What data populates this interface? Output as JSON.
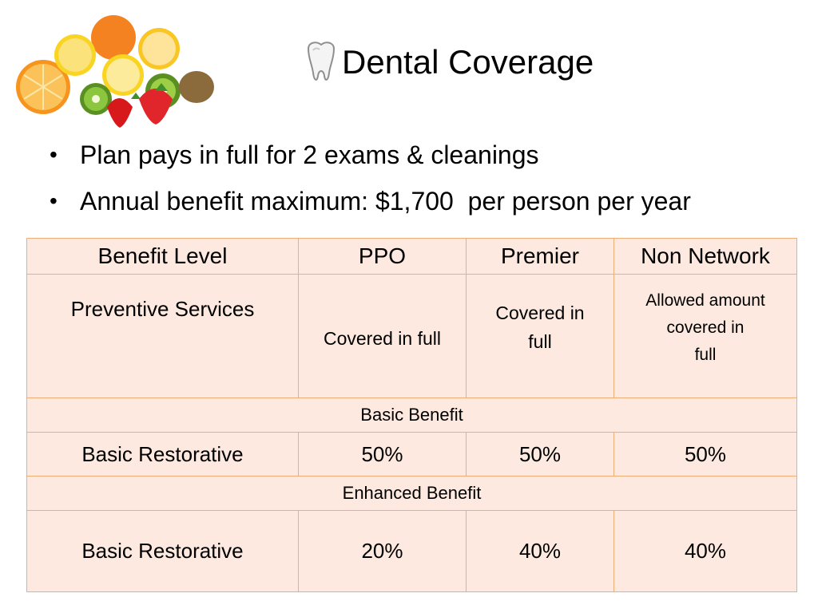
{
  "slide": {
    "title": "Dental Coverage",
    "title_icon": "tooth-icon",
    "fruit_image": "fruit-illustration",
    "bullets": [
      "Plan pays in full for 2 exams & cleanings",
      "Annual benefit maximum: $1,700  per person per year"
    ]
  },
  "table": {
    "headers": [
      "Benefit Level",
      "PPO",
      "Premier",
      "Non Network"
    ],
    "preventive": {
      "label": "Preventive Services",
      "ppo": "Covered  in full",
      "premier": "Covered in\nfull",
      "non_network": "Allowed amount\ncovered in\nfull"
    },
    "basic_section": "Basic Benefit",
    "basic_row": {
      "label": "Basic Restorative",
      "ppo": "50%",
      "premier": "50%",
      "non_network": "50%"
    },
    "enhanced_section": "Enhanced Benefit",
    "enhanced_row": {
      "label": "Basic Restorative",
      "ppo": "20%",
      "premier": "40%",
      "non_network": "40%"
    }
  },
  "colors": {
    "table_fill": "#fde9df",
    "table_border": "#f0ad75"
  }
}
